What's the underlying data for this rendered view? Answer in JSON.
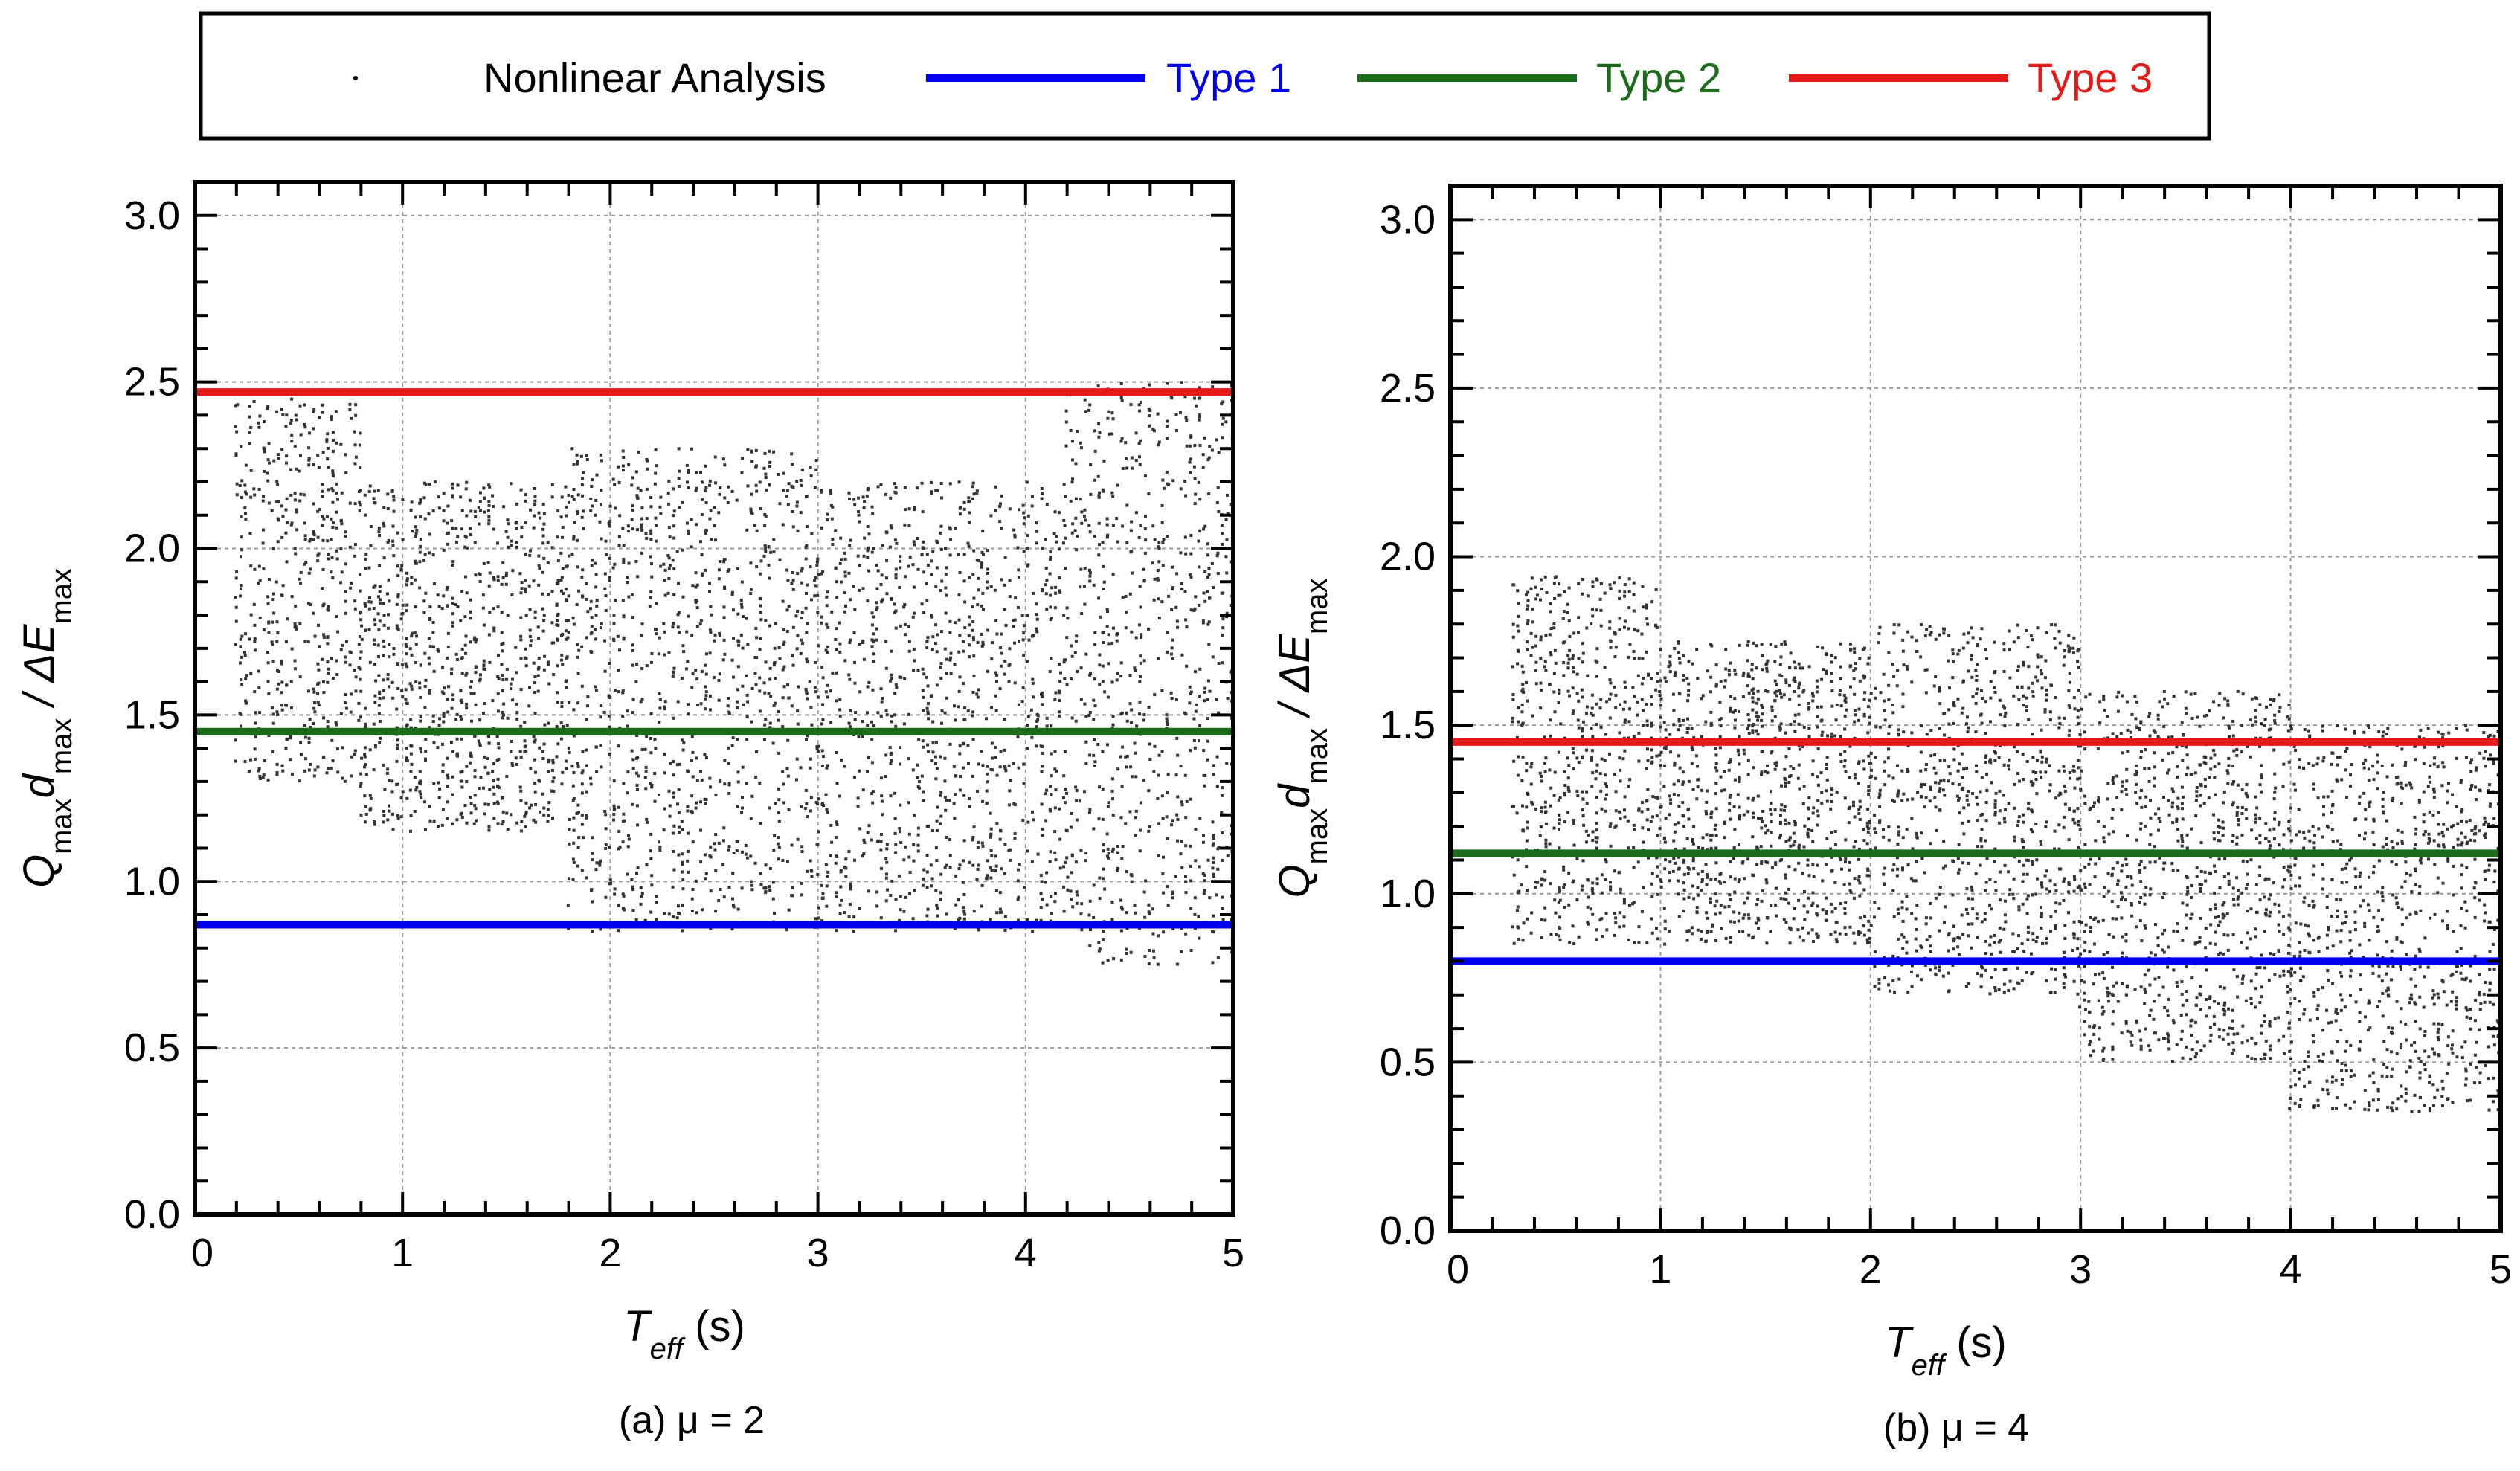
{
  "legend": {
    "items": [
      {
        "label": "Nonlinear Analysis",
        "kind": "dot",
        "color": "#000000"
      },
      {
        "label": "Type 1",
        "kind": "line",
        "color": "#0000ee"
      },
      {
        "label": "Type 2",
        "kind": "line",
        "color": "#1a6b1a"
      },
      {
        "label": "Type 3",
        "kind": "line",
        "color": "#e61919"
      }
    ]
  },
  "chart_data": [
    {
      "type": "scatter",
      "caption": "(a) μ = 2",
      "xlabel": "T",
      "xlabel_sub": "eff",
      "xlabel_unit": "(s)",
      "ylabel": "Q",
      "ylabel_sub": "max",
      "ylabel_mid": "d",
      "ylabel_mid_sub": "max",
      "ylabel_tail": " / ΔE",
      "ylabel_tail_sub": "max",
      "xlim": [
        0,
        5
      ],
      "ylim": [
        0,
        3.1
      ],
      "xticks": [
        0,
        1,
        2,
        3,
        4,
        5
      ],
      "xtick_labels": [
        "0",
        "1",
        "2",
        "3",
        "4",
        "5"
      ],
      "yticks": [
        0,
        0.5,
        1.0,
        1.5,
        2.0,
        2.5,
        3.0
      ],
      "ytick_labels": [
        "0.0",
        "0.5",
        "1.0",
        "1.5",
        "2.0",
        "2.5",
        "3.0"
      ],
      "grid": true,
      "hlines": [
        {
          "name": "Type 1",
          "y": 0.87,
          "color": "#0000ee"
        },
        {
          "name": "Type 2",
          "y": 1.45,
          "color": "#1a6b1a"
        },
        {
          "name": "Type 3",
          "y": 2.47,
          "color": "#e61919"
        }
      ],
      "scatter_bands": [
        {
          "x": [
            0.2,
            0.8
          ],
          "y": [
            1.3,
            2.45
          ]
        },
        {
          "x": [
            0.8,
            1.8
          ],
          "y": [
            1.15,
            2.2
          ]
        },
        {
          "x": [
            1.8,
            3.0
          ],
          "y": [
            0.85,
            2.3
          ]
        },
        {
          "x": [
            3.0,
            4.2
          ],
          "y": [
            0.85,
            2.2
          ]
        },
        {
          "x": [
            4.2,
            5.0
          ],
          "y": [
            0.75,
            2.5
          ]
        }
      ],
      "seed": 7
    },
    {
      "type": "scatter",
      "caption": "(b) μ = 4",
      "xlabel": "T",
      "xlabel_sub": "eff",
      "xlabel_unit": "(s)",
      "ylabel": "Q",
      "ylabel_sub": "max",
      "ylabel_mid": "d",
      "ylabel_mid_sub": "max",
      "ylabel_tail": " / ΔE",
      "ylabel_tail_sub": "max",
      "xlim": [
        0,
        5
      ],
      "ylim": [
        0,
        3.1
      ],
      "xticks": [
        0,
        1,
        2,
        3,
        4,
        5
      ],
      "xtick_labels": [
        "0",
        "1",
        "2",
        "3",
        "4",
        "5"
      ],
      "yticks": [
        0,
        0.5,
        1.0,
        1.5,
        2.0,
        2.5,
        3.0
      ],
      "ytick_labels": [
        "0.0",
        "0.5",
        "1.0",
        "1.5",
        "2.0",
        "2.5",
        "3.0"
      ],
      "grid": true,
      "hlines": [
        {
          "name": "Type 1",
          "y": 0.8,
          "color": "#0000ee"
        },
        {
          "name": "Type 2",
          "y": 1.12,
          "color": "#1a6b1a"
        },
        {
          "name": "Type 3",
          "y": 1.45,
          "color": "#e61919"
        }
      ],
      "scatter_bands": [
        {
          "x": [
            0.3,
            1.0
          ],
          "y": [
            0.85,
            1.95
          ]
        },
        {
          "x": [
            1.0,
            2.0
          ],
          "y": [
            0.85,
            1.75
          ]
        },
        {
          "x": [
            2.0,
            3.0
          ],
          "y": [
            0.7,
            1.8
          ]
        },
        {
          "x": [
            3.0,
            4.0
          ],
          "y": [
            0.5,
            1.6
          ]
        },
        {
          "x": [
            4.0,
            5.0
          ],
          "y": [
            0.35,
            1.5
          ]
        }
      ],
      "seed": 19
    }
  ]
}
